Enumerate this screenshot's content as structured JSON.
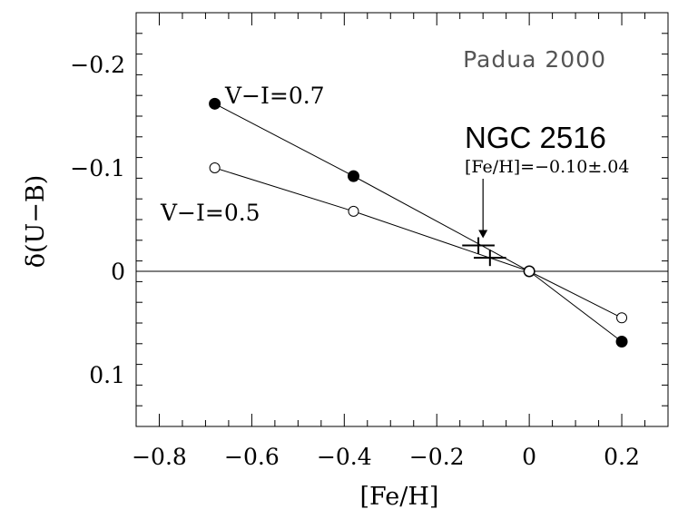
{
  "chart_data": {
    "type": "line",
    "title": "",
    "xlabel": "[Fe/H]",
    "ylabel": "δ(U−B)",
    "xlim": [
      -0.85,
      0.3
    ],
    "ylim": [
      0.15,
      -0.25
    ],
    "y_inverted": true,
    "x_ticks": [
      -0.8,
      -0.6,
      -0.4,
      -0.2,
      0,
      0.2
    ],
    "x_tick_labels": [
      "−0.8",
      "−0.6",
      "−0.4",
      "−0.2",
      "0",
      "0.2"
    ],
    "y_ticks": [
      -0.2,
      -0.1,
      0,
      0.1
    ],
    "y_tick_labels": [
      "−0.2",
      "−0.1",
      "0",
      "0.1"
    ],
    "grid": false,
    "corner_label": "Padua 2000",
    "series": [
      {
        "name": "V−I=0.7",
        "marker": "filled-circle",
        "x": [
          -0.68,
          -0.38,
          0.0,
          0.2
        ],
        "y": [
          -0.162,
          -0.092,
          0.0,
          0.068
        ]
      },
      {
        "name": "V−I=0.5",
        "marker": "open-circle",
        "x": [
          -0.68,
          -0.38,
          0.0,
          0.2
        ],
        "y": [
          -0.1,
          -0.058,
          0.0,
          0.045
        ]
      }
    ],
    "reference_line": {
      "y": 0
    },
    "cluster": {
      "name": "NGC 2516",
      "metallicity_label": "[Fe/H]=−0.10±.04",
      "points": [
        {
          "x": -0.11,
          "y": -0.025,
          "xerr": 0.035
        },
        {
          "x": -0.085,
          "y": -0.013,
          "xerr": 0.035
        }
      ],
      "arrow_to": {
        "x": -0.1,
        "y": -0.032
      }
    }
  }
}
